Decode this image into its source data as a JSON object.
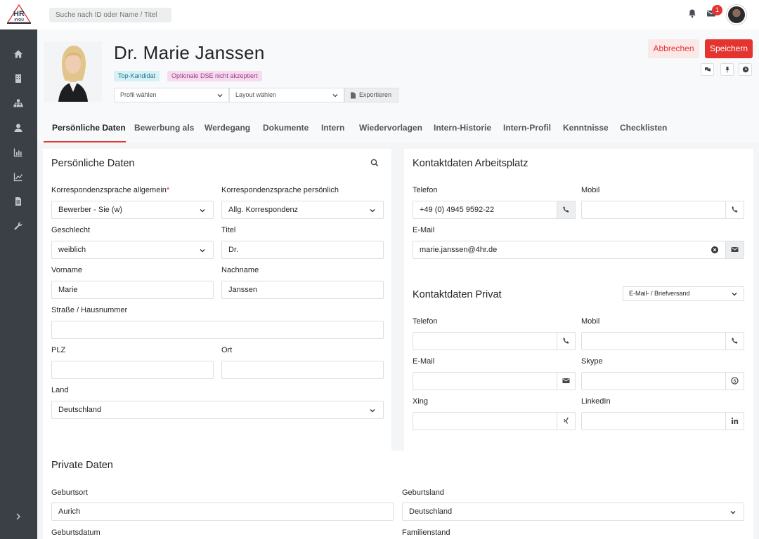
{
  "app": {
    "logo_text": "HR4YOU"
  },
  "topbar": {
    "search_placeholder": "Suche nach ID oder Name / Titel",
    "notification_count": "1"
  },
  "profile": {
    "name": "Dr. Marie Janssen",
    "tags": [
      "Top-Kandidat",
      "Optionale DSE nicht akzeptiert"
    ],
    "profile_select": "Profil wählen",
    "layout_select": "Layout wählen",
    "export_label": "Exportieren"
  },
  "actions": {
    "cancel": "Abbrechen",
    "save": "Speichern"
  },
  "tabs": [
    "Persönliche Daten",
    "Bewerbung als",
    "Werdegang",
    "Dokumente",
    "Intern",
    "Wiedervorlagen",
    "Intern-Historie",
    "Intern-Profil",
    "Kenntnisse",
    "Checklisten"
  ],
  "personal": {
    "title": "Persönliche Daten",
    "korr_allg_label": "Korrespondenzsprache allgemein",
    "korr_allg_value": "Bewerber - Sie (w)",
    "korr_pers_label": "Korrespondenzsprache persönlich",
    "korr_pers_value": "Allg. Korrespondenz",
    "gender_label": "Geschlecht",
    "gender_value": "weiblich",
    "titel_label": "Titel",
    "titel_value": "Dr.",
    "vorname_label": "Vorname",
    "vorname_value": "Marie",
    "nachname_label": "Nachname",
    "nachname_value": "Janssen",
    "street_label": "Straße / Hausnummer",
    "street_value": "",
    "plz_label": "PLZ",
    "plz_value": "",
    "ort_label": "Ort",
    "ort_value": "",
    "land_label": "Land",
    "land_value": "Deutschland"
  },
  "work_contact": {
    "title": "Kontaktdaten Arbeitsplatz",
    "telefon_label": "Telefon",
    "telefon_value": "+49 (0) 4945 9592-22",
    "mobil_label": "Mobil",
    "mobil_value": "",
    "email_label": "E-Mail",
    "email_value": "marie.janssen@4hr.de"
  },
  "private_contact": {
    "title": "Kontaktdaten Privat",
    "delivery_select": "E-Mail- / Briefversand",
    "telefon_label": "Telefon",
    "mobil_label": "Mobil",
    "email_label": "E-Mail",
    "skype_label": "Skype",
    "xing_label": "Xing",
    "linkedin_label": "LinkedIn"
  },
  "private_data": {
    "title": "Private Daten",
    "geburtsort_label": "Geburtsort",
    "geburtsort_value": "Aurich",
    "geburtsland_label": "Geburtsland",
    "geburtsland_value": "Deutschland",
    "geburtsdatum_label": "Geburtsdatum",
    "familienstand_label": "Familienstand"
  },
  "colors": {
    "accent": "#e3342f",
    "sidebar": "#3b3f46"
  }
}
